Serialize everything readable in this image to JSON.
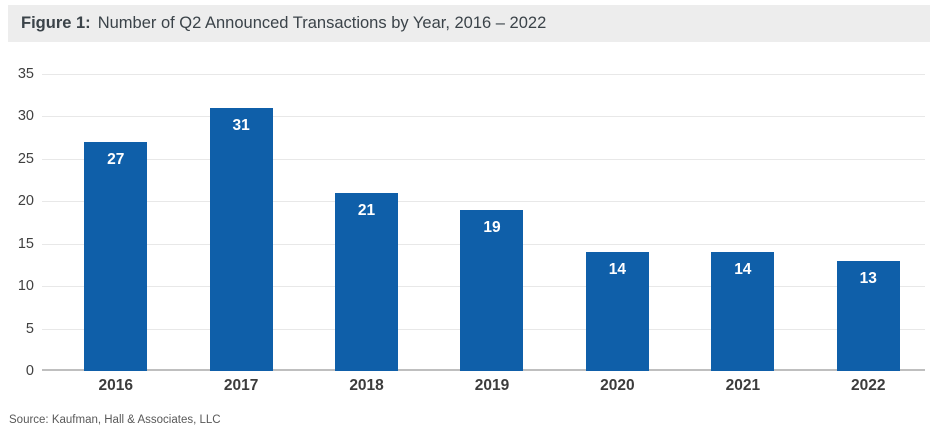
{
  "figure_header": {
    "label": "Figure 1:",
    "title": "Number of Q2 Announced Transactions by Year, 2016 – 2022"
  },
  "source_note": "Source: Kaufman, Hall & Associates, LLC",
  "chart_data": {
    "type": "bar",
    "title": "Number of Q2 Announced Transactions by Year, 2016 – 2022",
    "categories": [
      "2016",
      "2017",
      "2018",
      "2019",
      "2020",
      "2021",
      "2022"
    ],
    "values": [
      27,
      31,
      21,
      19,
      14,
      14,
      13
    ],
    "xlabel": "",
    "ylabel": "",
    "ylim": [
      0,
      35
    ],
    "yticks": [
      0,
      5,
      10,
      15,
      20,
      25,
      30,
      35
    ],
    "grid": true,
    "legend": "none",
    "bar_color": "#0F5FA9",
    "value_label_color": "#FFFFFF",
    "value_labels_inside_bars": true
  }
}
